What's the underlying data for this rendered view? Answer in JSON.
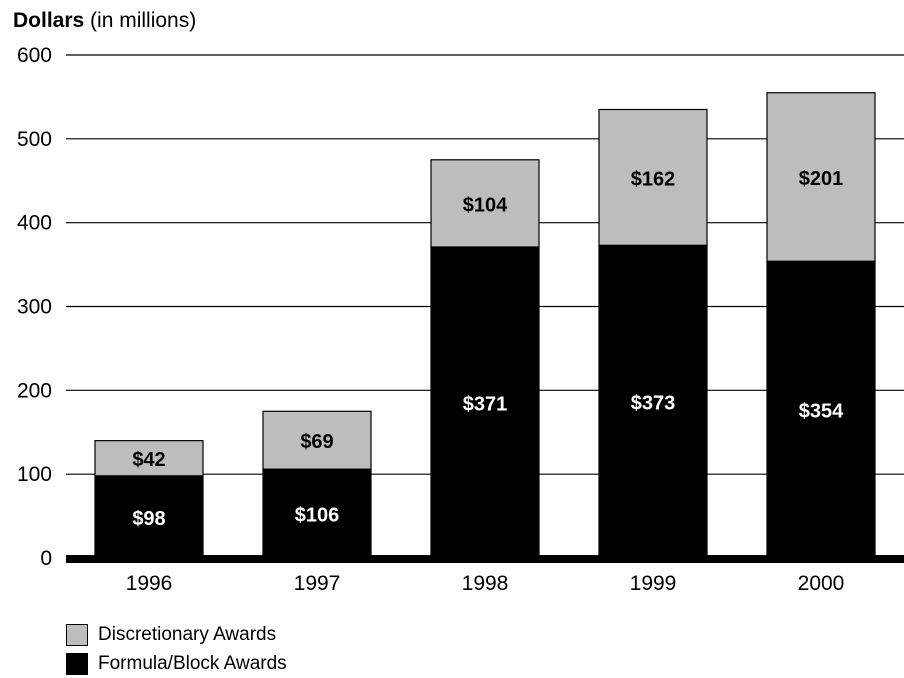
{
  "chart_data": {
    "type": "bar",
    "stacked": true,
    "ylabel_bold": "Dollars",
    "ylabel_rest": "(in millions)",
    "ylim": [
      0,
      600
    ],
    "yticks": [
      "0",
      "100",
      "200",
      "300",
      "400",
      "500",
      "600"
    ],
    "ytick_values": [
      0,
      100,
      200,
      300,
      400,
      500,
      600
    ],
    "categories": [
      "1996",
      "1997",
      "1998",
      "1999",
      "2000"
    ],
    "grid": true,
    "legend_placement": "bottom-left",
    "series": [
      {
        "name": "Formula/Block Awards",
        "color": "#000000",
        "label_color": "#ffffff",
        "values": [
          98,
          106,
          371,
          373,
          354
        ],
        "labels": [
          "$98",
          "$106",
          "$371",
          "$373",
          "$354"
        ]
      },
      {
        "name": "Discretionary Awards",
        "color": "#bdbdbd",
        "label_color": "#000000",
        "values": [
          42,
          69,
          104,
          162,
          201
        ],
        "labels": [
          "$42",
          "$69",
          "$104",
          "$162",
          "$201"
        ]
      }
    ],
    "legend": [
      {
        "name": "Discretionary Awards",
        "color": "#bdbdbd"
      },
      {
        "name": "Formula/Block Awards",
        "color": "#000000"
      }
    ]
  }
}
